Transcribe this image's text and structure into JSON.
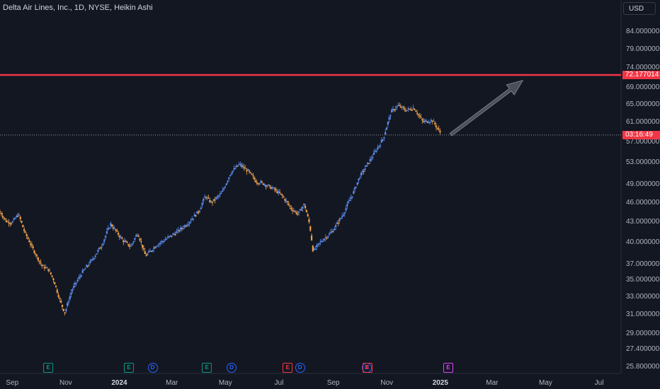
{
  "header": {
    "title": "Delta Air Lines, Inc., 1D, NYSE, Heikin Ashi",
    "currency": "USD"
  },
  "colors": {
    "background": "#131722",
    "up": "#5b8def",
    "down": "#f0a04b",
    "resistance": "#f23645",
    "arrow": "#4a4f5c",
    "grid": "#2a2e39"
  },
  "price_tags": {
    "resistance_label": "72.177014",
    "countdown_label": "03:16:49"
  },
  "chart_data": {
    "type": "candlestick",
    "style": "Heikin Ashi",
    "y_axis": {
      "scale": "log",
      "ticks": [
        "84.000000",
        "79.000000",
        "74.000000",
        "69.000000",
        "65.000000",
        "61.000000",
        "57.000000",
        "53.000000",
        "49.000000",
        "46.000000",
        "43.000000",
        "40.000000",
        "37.000000",
        "35.000000",
        "33.000000",
        "31.000000",
        "29.000000",
        "27.400000",
        "25.800000"
      ],
      "range": [
        25.2,
        94.0
      ]
    },
    "x_axis": {
      "ticks": [
        "Sep",
        "Nov",
        "2024",
        "Mar",
        "May",
        "Jul",
        "Sep",
        "Nov",
        "2025",
        "Mar",
        "May",
        "Jul"
      ],
      "bold_ticks": [
        "2024",
        "2025"
      ],
      "range": [
        "2023-08-18",
        "2025-07-26"
      ]
    },
    "resistance_level": 72.177014,
    "current_price": 58.4,
    "projection_arrow": {
      "from": [
        "2025-01-13",
        58.5
      ],
      "to": [
        "2025-04-05",
        70.8
      ]
    },
    "price_path": [
      [
        "2023-08-18",
        44.6
      ],
      [
        "2023-08-25",
        43.1
      ],
      [
        "2023-09-01",
        42.9
      ],
      [
        "2023-09-08",
        44.2
      ],
      [
        "2023-09-15",
        41.5
      ],
      [
        "2023-09-25",
        39.0
      ],
      [
        "2023-10-05",
        36.8
      ],
      [
        "2023-10-12",
        36.4
      ],
      [
        "2023-10-18",
        35.1
      ],
      [
        "2023-10-26",
        32.4
      ],
      [
        "2023-10-31",
        31.2
      ],
      [
        "2023-11-08",
        33.8
      ],
      [
        "2023-11-20",
        36.0
      ],
      [
        "2023-12-01",
        37.6
      ],
      [
        "2023-12-12",
        39.6
      ],
      [
        "2023-12-22",
        42.7
      ],
      [
        "2024-01-05",
        40.3
      ],
      [
        "2024-01-14",
        39.4
      ],
      [
        "2024-01-22",
        41.4
      ],
      [
        "2024-01-31",
        38.1
      ],
      [
        "2024-02-12",
        39.6
      ],
      [
        "2024-02-25",
        40.6
      ],
      [
        "2024-03-08",
        41.6
      ],
      [
        "2024-03-20",
        42.9
      ],
      [
        "2024-04-01",
        44.7
      ],
      [
        "2024-04-08",
        47.1
      ],
      [
        "2024-04-15",
        46.0
      ],
      [
        "2024-04-27",
        47.6
      ],
      [
        "2024-05-07",
        51.1
      ],
      [
        "2024-05-17",
        52.7
      ],
      [
        "2024-05-27",
        51.4
      ],
      [
        "2024-06-05",
        49.6
      ],
      [
        "2024-06-14",
        49.2
      ],
      [
        "2024-06-26",
        48.2
      ],
      [
        "2024-07-05",
        47.1
      ],
      [
        "2024-07-15",
        45.1
      ],
      [
        "2024-07-23",
        44.2
      ],
      [
        "2024-07-30",
        45.8
      ],
      [
        "2024-08-05",
        42.6
      ],
      [
        "2024-08-09",
        38.7
      ],
      [
        "2024-08-17",
        40.0
      ],
      [
        "2024-08-31",
        41.6
      ],
      [
        "2024-09-12",
        44.1
      ],
      [
        "2024-09-24",
        47.7
      ],
      [
        "2024-10-01",
        50.4
      ],
      [
        "2024-10-09",
        52.4
      ],
      [
        "2024-10-18",
        54.8
      ],
      [
        "2024-10-28",
        57.7
      ],
      [
        "2024-11-06",
        63.4
      ],
      [
        "2024-11-14",
        64.8
      ],
      [
        "2024-11-23",
        63.7
      ],
      [
        "2024-12-02",
        64.3
      ],
      [
        "2024-12-12",
        61.2
      ],
      [
        "2024-12-23",
        61.5
      ],
      [
        "2025-01-02",
        58.6
      ]
    ],
    "events": [
      {
        "type": "E",
        "date": "2023-10-12",
        "color": "#089981"
      },
      {
        "type": "E",
        "date": "2024-01-12",
        "color": "#089981"
      },
      {
        "type": "D",
        "date": "2024-02-08",
        "color": "#2962ff"
      },
      {
        "type": "E",
        "date": "2024-04-10",
        "color": "#089981"
      },
      {
        "type": "D",
        "date": "2024-05-08",
        "color": "#2962ff"
      },
      {
        "type": "E",
        "date": "2024-07-11",
        "color": "#f23645"
      },
      {
        "type": "D",
        "date": "2024-07-25",
        "color": "#2962ff"
      },
      {
        "type": "D",
        "date": "2024-10-09",
        "color": "#2962ff"
      },
      {
        "type": "E",
        "date": "2024-10-10",
        "color": "#f23645"
      },
      {
        "type": "E",
        "date": "2025-01-10",
        "color": "#e040fb"
      }
    ]
  }
}
